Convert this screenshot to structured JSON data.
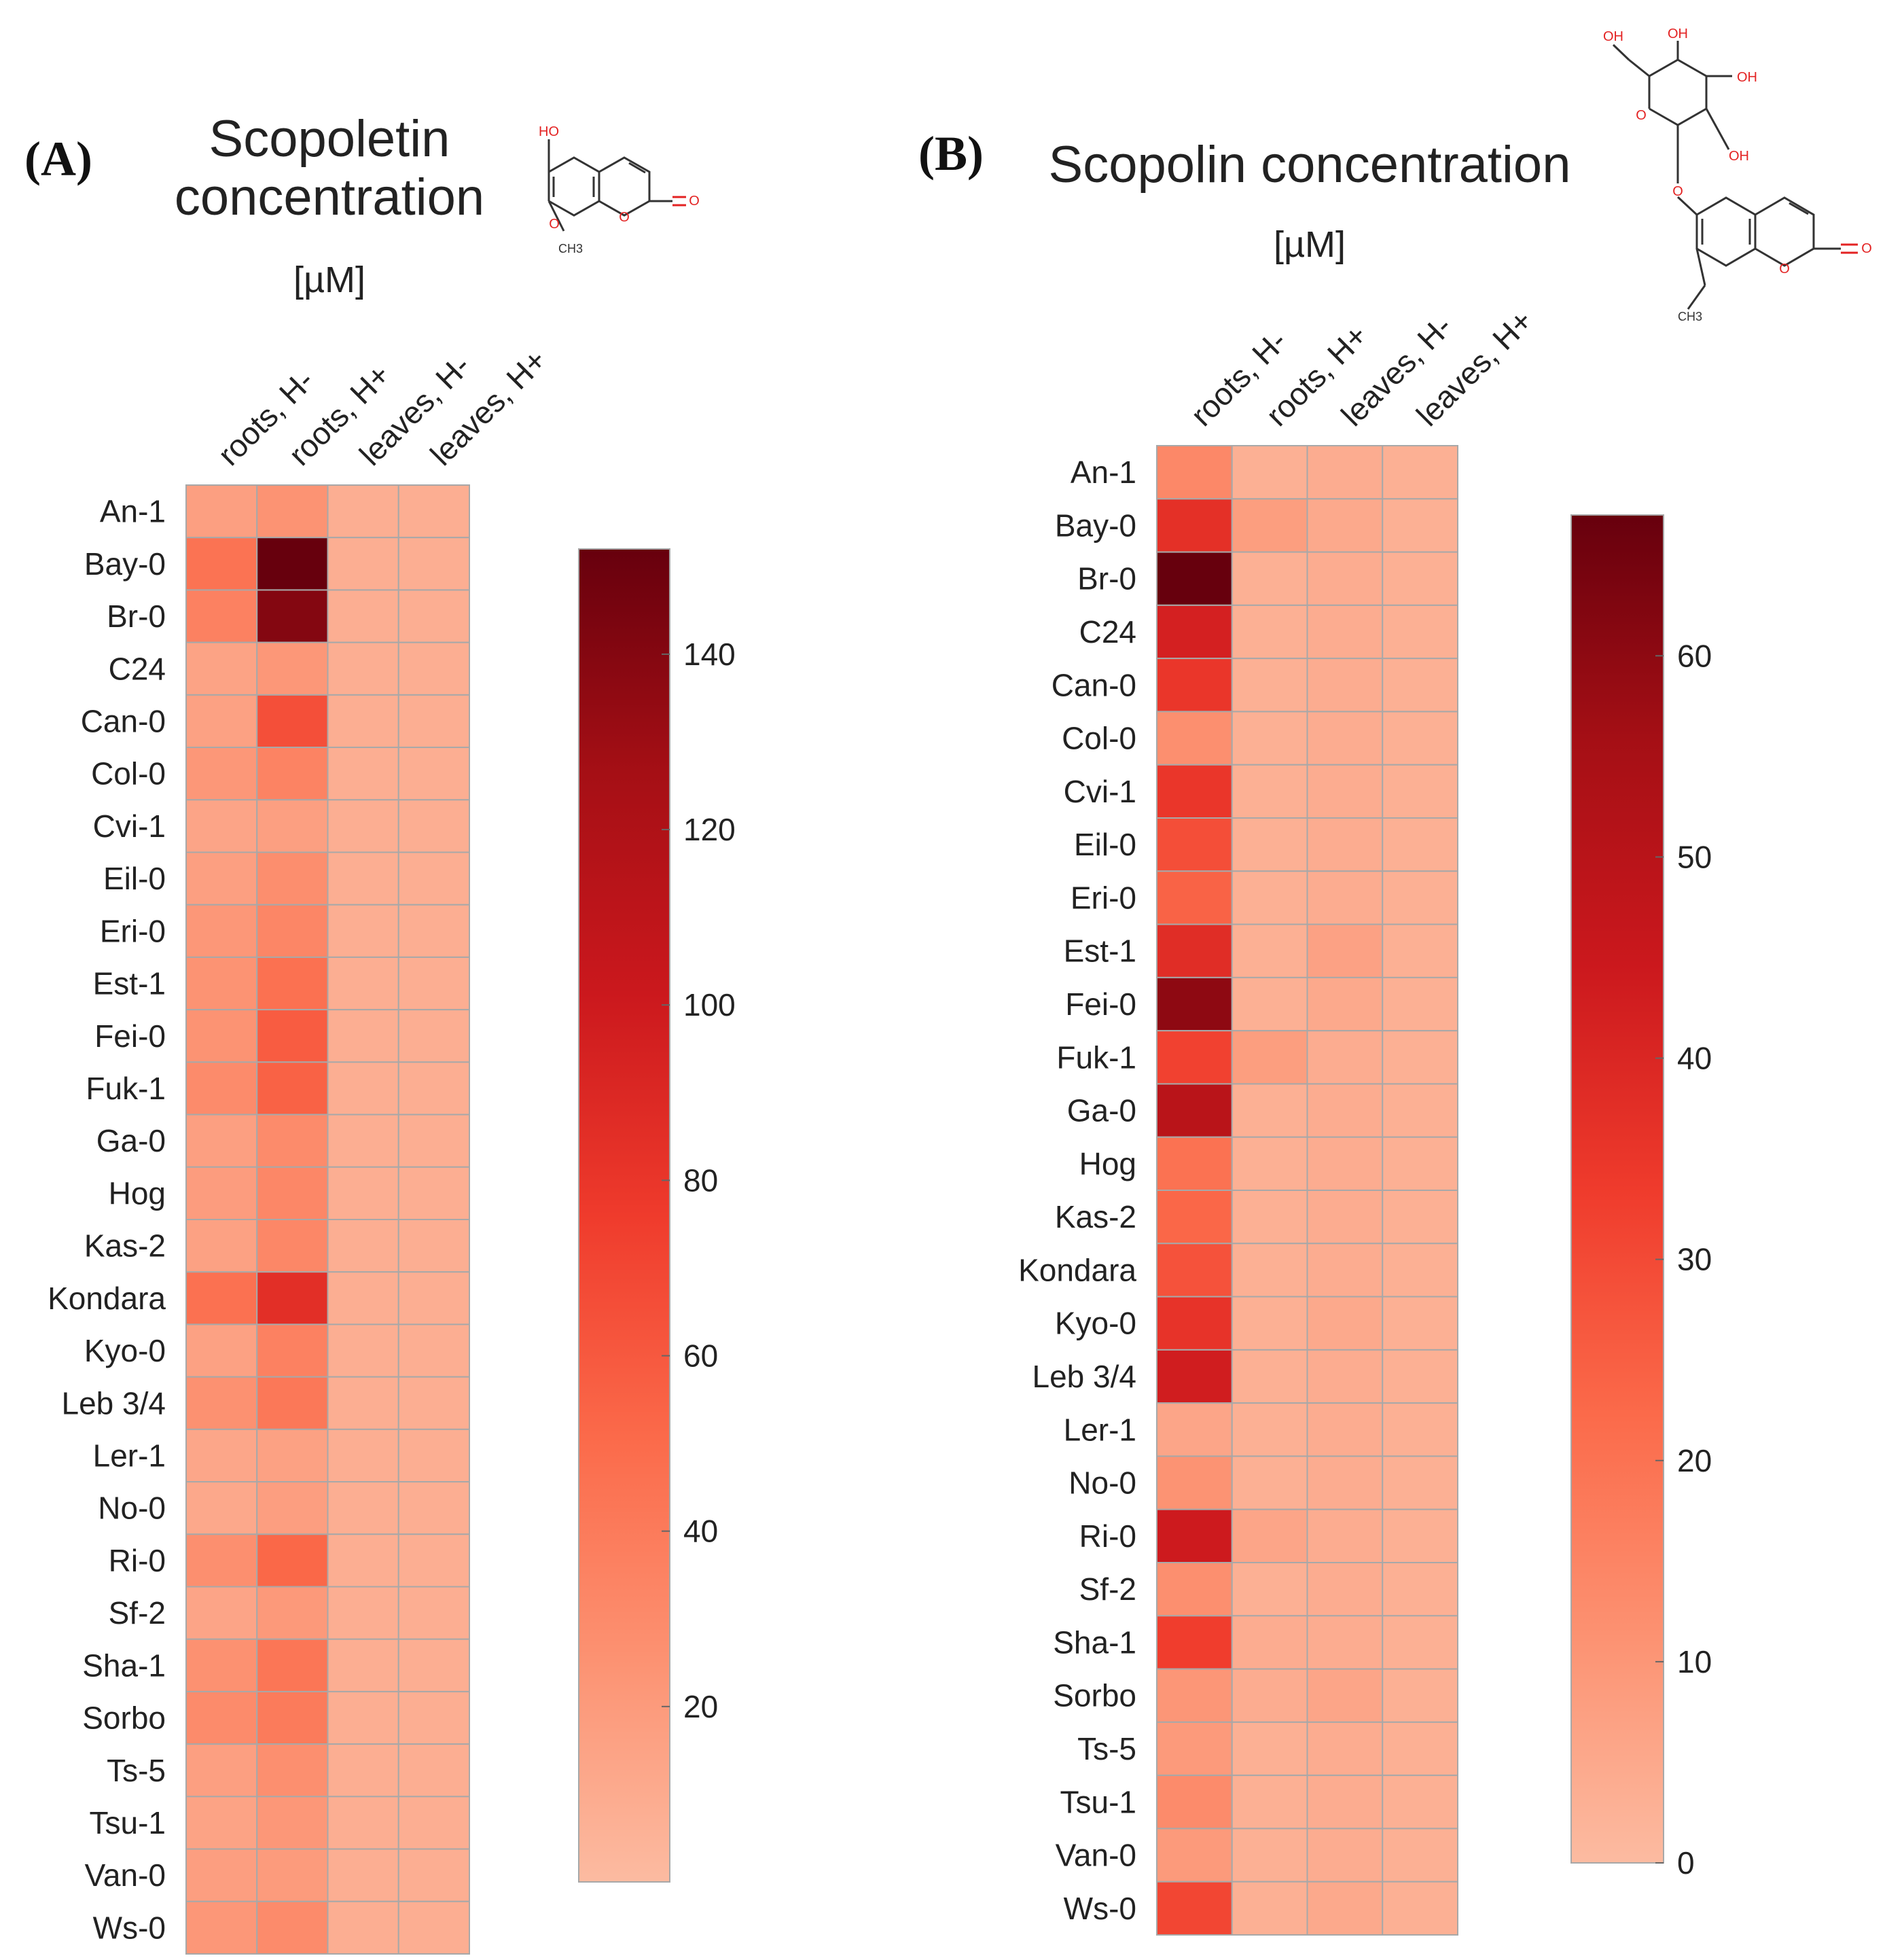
{
  "chart_data": [
    {
      "panel_label": "(A)",
      "type": "heatmap",
      "title": "Scopoletin concentration",
      "title_lines": [
        "Scopoletin",
        "concentration"
      ],
      "unit": "[µM]",
      "structure": {
        "name": "scopoletin",
        "atom_labels": [
          "HO",
          "O",
          "O",
          "O",
          "CH3"
        ]
      },
      "columns": [
        "roots, H-",
        "roots, H+",
        "leaves, H-",
        "leaves, H+"
      ],
      "rows": [
        "An-1",
        "Bay-0",
        "Br-0",
        "C24",
        "Can-0",
        "Col-0",
        "Cvi-1",
        "Eil-0",
        "Eri-0",
        "Est-1",
        "Fei-0",
        "Fuk-1",
        "Ga-0",
        "Hog",
        "Kas-2",
        "Kondara",
        "Kyo-0",
        "Leb 3/4",
        "Ler-1",
        "No-0",
        "Ri-0",
        "Sf-2",
        "Sha-1",
        "Sorbo",
        "Ts-5",
        "Tsu-1",
        "Van-0",
        "Ws-0"
      ],
      "values": [
        [
          17,
          25,
          8,
          8
        ],
        [
          45,
          152,
          8,
          8
        ],
        [
          36,
          140,
          8,
          8
        ],
        [
          15,
          22,
          8,
          8
        ],
        [
          16,
          65,
          8,
          8
        ],
        [
          22,
          35,
          8,
          8
        ],
        [
          14,
          17,
          8,
          8
        ],
        [
          17,
          28,
          8,
          8
        ],
        [
          22,
          33,
          8,
          8
        ],
        [
          25,
          46,
          8,
          8
        ],
        [
          25,
          58,
          8,
          8
        ],
        [
          30,
          55,
          8,
          8
        ],
        [
          17,
          30,
          8,
          8
        ],
        [
          19,
          32,
          8,
          8
        ],
        [
          16,
          32,
          8,
          8
        ],
        [
          46,
          85,
          8,
          8
        ],
        [
          16,
          36,
          8,
          8
        ],
        [
          26,
          42,
          8,
          8
        ],
        [
          13,
          16,
          8,
          8
        ],
        [
          12,
          18,
          8,
          8
        ],
        [
          27,
          52,
          8,
          8
        ],
        [
          14,
          21,
          8,
          8
        ],
        [
          26,
          43,
          8,
          8
        ],
        [
          30,
          40,
          8,
          8
        ],
        [
          17,
          27,
          8,
          8
        ],
        [
          15,
          22,
          8,
          8
        ],
        [
          18,
          20,
          8,
          8
        ],
        [
          22,
          30,
          8,
          8
        ]
      ],
      "colorbar": {
        "min": 0,
        "max": 152,
        "ticks": [
          20,
          40,
          60,
          80,
          100,
          120,
          140
        ]
      }
    },
    {
      "panel_label": "(B)",
      "type": "heatmap",
      "title": "Scopolin concentration",
      "title_lines": [
        "Scopolin concentration"
      ],
      "unit": "[µM]",
      "structure": {
        "name": "scopolin",
        "atom_labels": [
          "OH",
          "OH",
          "OH",
          "OH",
          "O",
          "O",
          "O",
          "O",
          "CH3"
        ]
      },
      "columns": [
        "roots, H-",
        "roots, H+",
        "leaves, H-",
        "leaves, H+"
      ],
      "rows": [
        "An-1",
        "Bay-0",
        "Br-0",
        "C24",
        "Can-0",
        "Col-0",
        "Cvi-1",
        "Eil-0",
        "Eri-0",
        "Est-1",
        "Fei-0",
        "Fuk-1",
        "Ga-0",
        "Hog",
        "Kas-2",
        "Kondara",
        "Kyo-0",
        "Leb 3/4",
        "Ler-1",
        "No-0",
        "Ri-0",
        "Sf-2",
        "Sha-1",
        "Sorbo",
        "Ts-5",
        "Tsu-1",
        "Van-0",
        "Ws-0"
      ],
      "values": [
        [
          14,
          3,
          4,
          3
        ],
        [
          37,
          8,
          5,
          3
        ],
        [
          67,
          3,
          4,
          3
        ],
        [
          42,
          3,
          4,
          3
        ],
        [
          35,
          3,
          4,
          3
        ],
        [
          12,
          3,
          4,
          3
        ],
        [
          35,
          3,
          4,
          3
        ],
        [
          29,
          3,
          4,
          3
        ],
        [
          24,
          3,
          4,
          3
        ],
        [
          38,
          3,
          7,
          3
        ],
        [
          60,
          3,
          5,
          3
        ],
        [
          32,
          8,
          4,
          3
        ],
        [
          50,
          3,
          4,
          3
        ],
        [
          20,
          3,
          4,
          3
        ],
        [
          23,
          3,
          4,
          3
        ],
        [
          28,
          3,
          4,
          3
        ],
        [
          36,
          3,
          5,
          3
        ],
        [
          43,
          3,
          4,
          3
        ],
        [
          6,
          3,
          4,
          3
        ],
        [
          11,
          3,
          4,
          3
        ],
        [
          44,
          6,
          4,
          3
        ],
        [
          12,
          3,
          4,
          3
        ],
        [
          33,
          4,
          4,
          3
        ],
        [
          10,
          4,
          6,
          3
        ],
        [
          9,
          3,
          4,
          3
        ],
        [
          13,
          3,
          4,
          3
        ],
        [
          9,
          3,
          4,
          3
        ],
        [
          31,
          3,
          5,
          3
        ]
      ],
      "colorbar": {
        "min": 0,
        "max": 67,
        "ticks": [
          0,
          10,
          20,
          30,
          40,
          50,
          60
        ]
      }
    }
  ],
  "colors": {
    "scale": [
      "#fcbba1",
      "#fc9272",
      "#fb6a4a",
      "#ef3b2c",
      "#cb181d",
      "#a50f15",
      "#67000d"
    ],
    "cell_border": "#a8a8a8",
    "text": "#222222",
    "heteroatom": "#e32222"
  }
}
